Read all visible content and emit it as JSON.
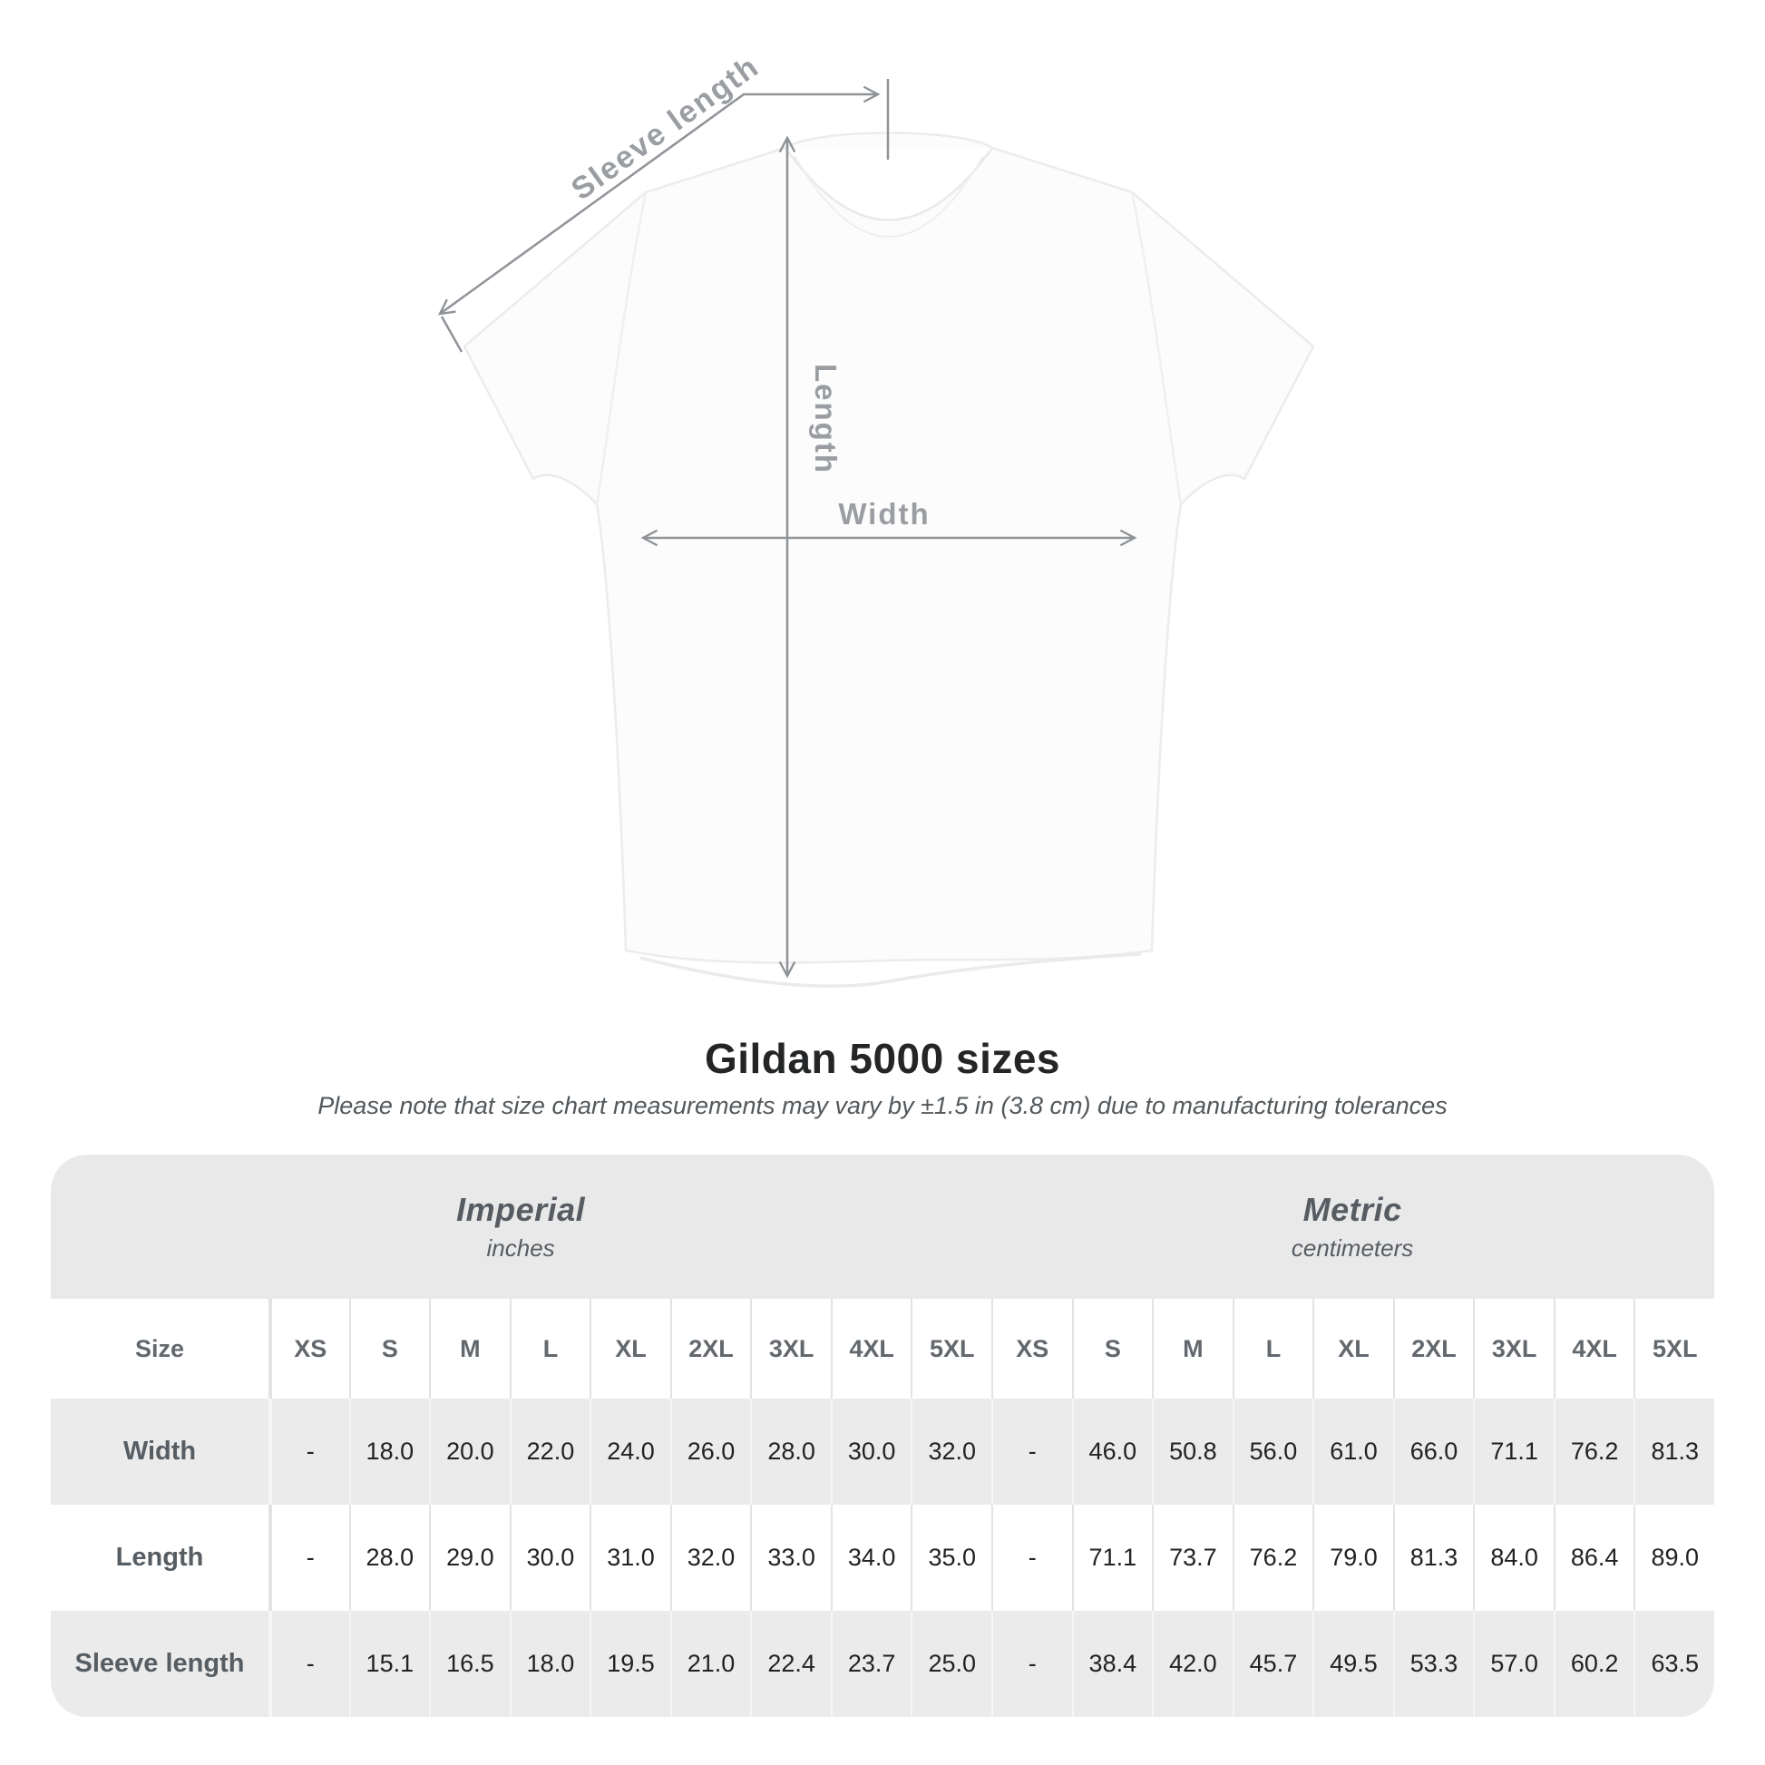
{
  "diagram": {
    "sleeve_length_label": "Sleeve length",
    "length_label": "Length",
    "width_label": "Width"
  },
  "heading": {
    "title": "Gildan 5000 sizes",
    "subtitle": "Please note that size chart measurements may vary by ±1.5 in (3.8 cm) due to manufacturing tolerances"
  },
  "table": {
    "groups": [
      {
        "name": "Imperial",
        "unit": "inches"
      },
      {
        "name": "Metric",
        "unit": "centimeters"
      }
    ],
    "size_column_label": "Size",
    "sizes": [
      "XS",
      "S",
      "M",
      "L",
      "XL",
      "2XL",
      "3XL",
      "4XL",
      "5XL"
    ],
    "rows": [
      {
        "label": "Width",
        "imperial": [
          "-",
          "18.0",
          "20.0",
          "22.0",
          "24.0",
          "26.0",
          "28.0",
          "30.0",
          "32.0"
        ],
        "metric": [
          "-",
          "46.0",
          "50.8",
          "56.0",
          "61.0",
          "66.0",
          "71.1",
          "76.2",
          "81.3"
        ]
      },
      {
        "label": "Length",
        "imperial": [
          "-",
          "28.0",
          "29.0",
          "30.0",
          "31.0",
          "32.0",
          "33.0",
          "34.0",
          "35.0"
        ],
        "metric": [
          "-",
          "71.1",
          "73.7",
          "76.2",
          "79.0",
          "81.3",
          "84.0",
          "86.4",
          "89.0"
        ]
      },
      {
        "label": "Sleeve length",
        "imperial": [
          "-",
          "15.1",
          "16.5",
          "18.0",
          "19.5",
          "21.0",
          "22.4",
          "23.7",
          "25.0"
        ],
        "metric": [
          "-",
          "38.4",
          "42.0",
          "45.7",
          "49.5",
          "53.3",
          "57.0",
          "60.2",
          "63.5"
        ]
      }
    ]
  },
  "colors": {
    "annotation_line": "#8f9397",
    "annotation_text": "#9a9da1",
    "band_background": "#e9e9ea",
    "alt_row_background": "#ebebec",
    "value_text": "#202224",
    "label_text": "#565d63"
  },
  "chart_data": {
    "type": "table",
    "title": "Gildan 5000 sizes",
    "subtitle": "Please note that size chart measurements may vary by ±1.5 in (3.8 cm) due to manufacturing tolerances",
    "column_groups": [
      "Imperial (inches)",
      "Metric (centimeters)"
    ],
    "columns": [
      "Size",
      "XS",
      "S",
      "M",
      "L",
      "XL",
      "2XL",
      "3XL",
      "4XL",
      "5XL",
      "XS",
      "S",
      "M",
      "L",
      "XL",
      "2XL",
      "3XL",
      "4XL",
      "5XL"
    ],
    "rows": [
      [
        "Width",
        "-",
        18.0,
        20.0,
        22.0,
        24.0,
        26.0,
        28.0,
        30.0,
        32.0,
        "-",
        46.0,
        50.8,
        56.0,
        61.0,
        66.0,
        71.1,
        76.2,
        81.3
      ],
      [
        "Length",
        "-",
        28.0,
        29.0,
        30.0,
        31.0,
        32.0,
        33.0,
        34.0,
        35.0,
        "-",
        71.1,
        73.7,
        76.2,
        79.0,
        81.3,
        84.0,
        86.4,
        89.0
      ],
      [
        "Sleeve length",
        "-",
        15.1,
        16.5,
        18.0,
        19.5,
        21.0,
        22.4,
        23.7,
        25.0,
        "-",
        38.4,
        42.0,
        45.7,
        49.5,
        53.3,
        57.0,
        60.2,
        63.5
      ]
    ]
  }
}
